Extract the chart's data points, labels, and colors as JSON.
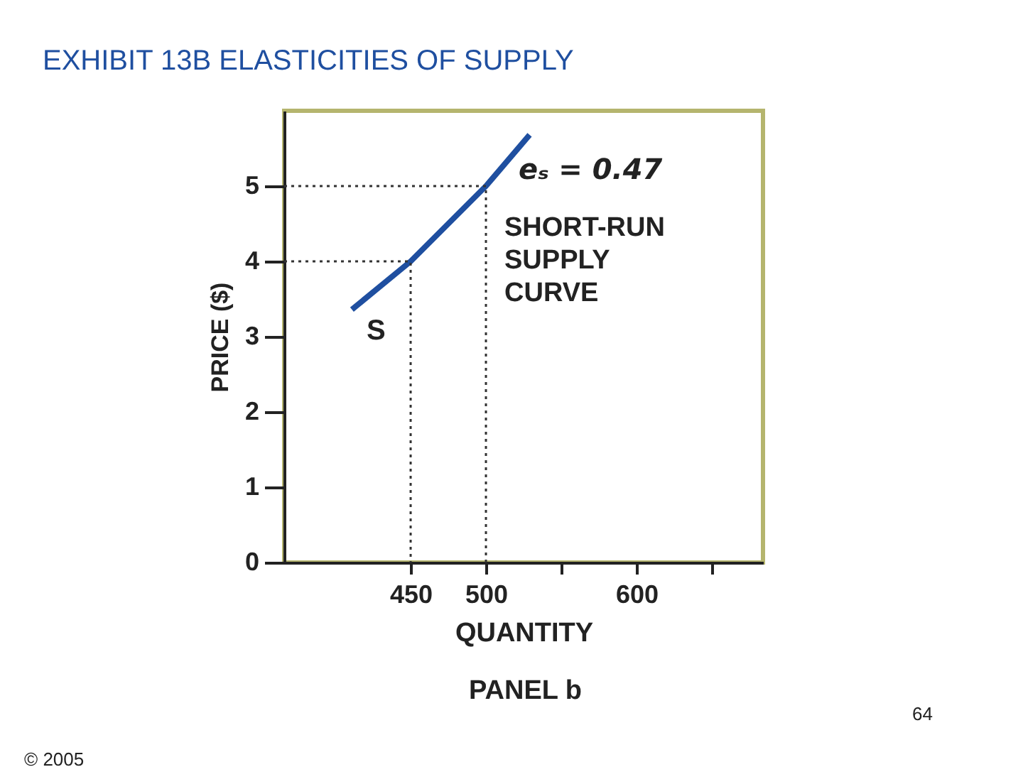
{
  "chart_data": {
    "type": "line",
    "title": "EXHIBIT 13B ELASTICITIES OF SUPPLY",
    "xlabel": "QUANTITY",
    "ylabel": "PRICE ($)",
    "x": [
      411,
      450,
      500,
      529
    ],
    "series": [
      {
        "color": "#1f4fa0",
        "values": [
          3.36,
          4,
          5,
          5.68
        ]
      },
      {
        "type": "line",
        "line_style": "dotted",
        "color": "#333333",
        "x": [
          366,
          450,
          450
        ],
        "values": [
          4,
          4,
          0
        ]
      },
      {
        "type": "line",
        "line_style": "dotted",
        "color": "#333333",
        "x": [
          366,
          500,
          500
        ],
        "values": [
          5,
          5,
          0
        ]
      }
    ],
    "xlim": [
      366,
      684
    ],
    "ylim": [
      0,
      6
    ],
    "xticks": [
      450,
      500,
      {
        "value": 550,
        "label": null
      },
      600,
      {
        "value": 650,
        "label": null
      }
    ],
    "yticks": [
      0,
      1,
      2,
      3,
      4,
      5
    ],
    "grid": false,
    "marker": "none",
    "line_style": "solid",
    "annotations": [
      "eₛ = 0.47",
      "SHORT-RUN SUPPLY CURVE",
      "S",
      "PANEL b",
      "© 2005",
      "64"
    ]
  }
}
